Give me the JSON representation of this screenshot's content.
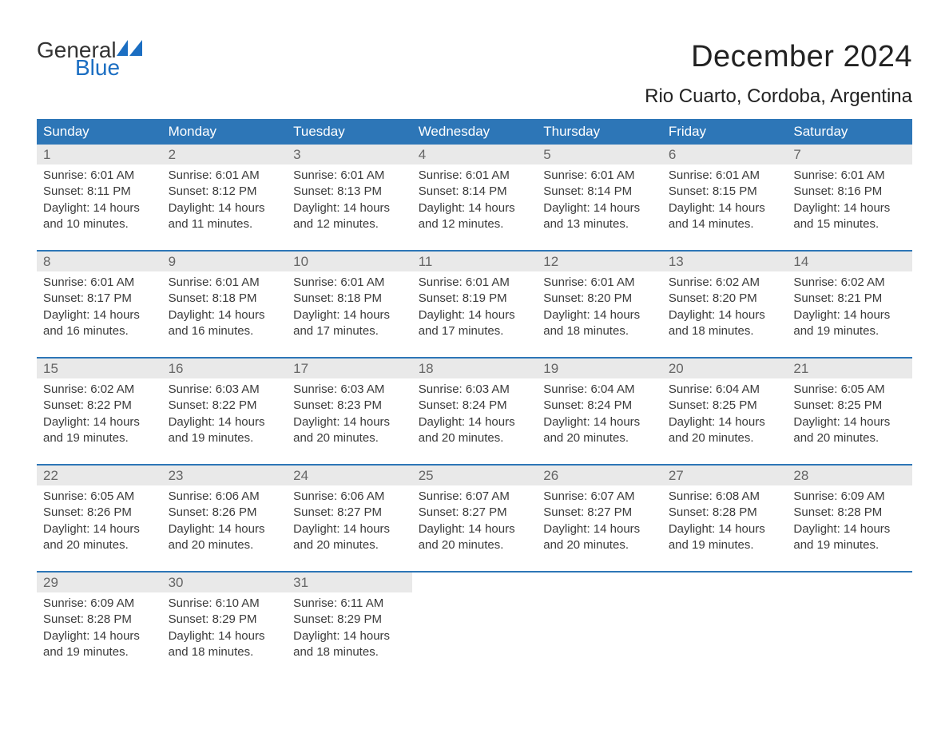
{
  "logo": {
    "word1": "General",
    "word2": "Blue",
    "flag_color": "#1b6ec2",
    "text_color_general": "#333333",
    "text_color_blue": "#1b6ec2"
  },
  "title": "December 2024",
  "location": "Rio Cuarto, Cordoba, Argentina",
  "colors": {
    "header_bg": "#2d76b7",
    "header_text": "#ffffff",
    "daynum_bg": "#e9e9e9",
    "daynum_text": "#666666",
    "body_text": "#3a3a3a",
    "week_divider": "#2d76b7",
    "page_bg": "#ffffff"
  },
  "typography": {
    "title_fontsize": 38,
    "location_fontsize": 24,
    "header_fontsize": 17,
    "daynum_fontsize": 17,
    "cell_fontsize": 15,
    "font_family": "Arial"
  },
  "day_headers": [
    "Sunday",
    "Monday",
    "Tuesday",
    "Wednesday",
    "Thursday",
    "Friday",
    "Saturday"
  ],
  "weeks": [
    [
      {
        "num": "1",
        "sunrise": "Sunrise: 6:01 AM",
        "sunset": "Sunset: 8:11 PM",
        "dl1": "Daylight: 14 hours",
        "dl2": "and 10 minutes."
      },
      {
        "num": "2",
        "sunrise": "Sunrise: 6:01 AM",
        "sunset": "Sunset: 8:12 PM",
        "dl1": "Daylight: 14 hours",
        "dl2": "and 11 minutes."
      },
      {
        "num": "3",
        "sunrise": "Sunrise: 6:01 AM",
        "sunset": "Sunset: 8:13 PM",
        "dl1": "Daylight: 14 hours",
        "dl2": "and 12 minutes."
      },
      {
        "num": "4",
        "sunrise": "Sunrise: 6:01 AM",
        "sunset": "Sunset: 8:14 PM",
        "dl1": "Daylight: 14 hours",
        "dl2": "and 12 minutes."
      },
      {
        "num": "5",
        "sunrise": "Sunrise: 6:01 AM",
        "sunset": "Sunset: 8:14 PM",
        "dl1": "Daylight: 14 hours",
        "dl2": "and 13 minutes."
      },
      {
        "num": "6",
        "sunrise": "Sunrise: 6:01 AM",
        "sunset": "Sunset: 8:15 PM",
        "dl1": "Daylight: 14 hours",
        "dl2": "and 14 minutes."
      },
      {
        "num": "7",
        "sunrise": "Sunrise: 6:01 AM",
        "sunset": "Sunset: 8:16 PM",
        "dl1": "Daylight: 14 hours",
        "dl2": "and 15 minutes."
      }
    ],
    [
      {
        "num": "8",
        "sunrise": "Sunrise: 6:01 AM",
        "sunset": "Sunset: 8:17 PM",
        "dl1": "Daylight: 14 hours",
        "dl2": "and 16 minutes."
      },
      {
        "num": "9",
        "sunrise": "Sunrise: 6:01 AM",
        "sunset": "Sunset: 8:18 PM",
        "dl1": "Daylight: 14 hours",
        "dl2": "and 16 minutes."
      },
      {
        "num": "10",
        "sunrise": "Sunrise: 6:01 AM",
        "sunset": "Sunset: 8:18 PM",
        "dl1": "Daylight: 14 hours",
        "dl2": "and 17 minutes."
      },
      {
        "num": "11",
        "sunrise": "Sunrise: 6:01 AM",
        "sunset": "Sunset: 8:19 PM",
        "dl1": "Daylight: 14 hours",
        "dl2": "and 17 minutes."
      },
      {
        "num": "12",
        "sunrise": "Sunrise: 6:01 AM",
        "sunset": "Sunset: 8:20 PM",
        "dl1": "Daylight: 14 hours",
        "dl2": "and 18 minutes."
      },
      {
        "num": "13",
        "sunrise": "Sunrise: 6:02 AM",
        "sunset": "Sunset: 8:20 PM",
        "dl1": "Daylight: 14 hours",
        "dl2": "and 18 minutes."
      },
      {
        "num": "14",
        "sunrise": "Sunrise: 6:02 AM",
        "sunset": "Sunset: 8:21 PM",
        "dl1": "Daylight: 14 hours",
        "dl2": "and 19 minutes."
      }
    ],
    [
      {
        "num": "15",
        "sunrise": "Sunrise: 6:02 AM",
        "sunset": "Sunset: 8:22 PM",
        "dl1": "Daylight: 14 hours",
        "dl2": "and 19 minutes."
      },
      {
        "num": "16",
        "sunrise": "Sunrise: 6:03 AM",
        "sunset": "Sunset: 8:22 PM",
        "dl1": "Daylight: 14 hours",
        "dl2": "and 19 minutes."
      },
      {
        "num": "17",
        "sunrise": "Sunrise: 6:03 AM",
        "sunset": "Sunset: 8:23 PM",
        "dl1": "Daylight: 14 hours",
        "dl2": "and 20 minutes."
      },
      {
        "num": "18",
        "sunrise": "Sunrise: 6:03 AM",
        "sunset": "Sunset: 8:24 PM",
        "dl1": "Daylight: 14 hours",
        "dl2": "and 20 minutes."
      },
      {
        "num": "19",
        "sunrise": "Sunrise: 6:04 AM",
        "sunset": "Sunset: 8:24 PM",
        "dl1": "Daylight: 14 hours",
        "dl2": "and 20 minutes."
      },
      {
        "num": "20",
        "sunrise": "Sunrise: 6:04 AM",
        "sunset": "Sunset: 8:25 PM",
        "dl1": "Daylight: 14 hours",
        "dl2": "and 20 minutes."
      },
      {
        "num": "21",
        "sunrise": "Sunrise: 6:05 AM",
        "sunset": "Sunset: 8:25 PM",
        "dl1": "Daylight: 14 hours",
        "dl2": "and 20 minutes."
      }
    ],
    [
      {
        "num": "22",
        "sunrise": "Sunrise: 6:05 AM",
        "sunset": "Sunset: 8:26 PM",
        "dl1": "Daylight: 14 hours",
        "dl2": "and 20 minutes."
      },
      {
        "num": "23",
        "sunrise": "Sunrise: 6:06 AM",
        "sunset": "Sunset: 8:26 PM",
        "dl1": "Daylight: 14 hours",
        "dl2": "and 20 minutes."
      },
      {
        "num": "24",
        "sunrise": "Sunrise: 6:06 AM",
        "sunset": "Sunset: 8:27 PM",
        "dl1": "Daylight: 14 hours",
        "dl2": "and 20 minutes."
      },
      {
        "num": "25",
        "sunrise": "Sunrise: 6:07 AM",
        "sunset": "Sunset: 8:27 PM",
        "dl1": "Daylight: 14 hours",
        "dl2": "and 20 minutes."
      },
      {
        "num": "26",
        "sunrise": "Sunrise: 6:07 AM",
        "sunset": "Sunset: 8:27 PM",
        "dl1": "Daylight: 14 hours",
        "dl2": "and 20 minutes."
      },
      {
        "num": "27",
        "sunrise": "Sunrise: 6:08 AM",
        "sunset": "Sunset: 8:28 PM",
        "dl1": "Daylight: 14 hours",
        "dl2": "and 19 minutes."
      },
      {
        "num": "28",
        "sunrise": "Sunrise: 6:09 AM",
        "sunset": "Sunset: 8:28 PM",
        "dl1": "Daylight: 14 hours",
        "dl2": "and 19 minutes."
      }
    ],
    [
      {
        "num": "29",
        "sunrise": "Sunrise: 6:09 AM",
        "sunset": "Sunset: 8:28 PM",
        "dl1": "Daylight: 14 hours",
        "dl2": "and 19 minutes."
      },
      {
        "num": "30",
        "sunrise": "Sunrise: 6:10 AM",
        "sunset": "Sunset: 8:29 PM",
        "dl1": "Daylight: 14 hours",
        "dl2": "and 18 minutes."
      },
      {
        "num": "31",
        "sunrise": "Sunrise: 6:11 AM",
        "sunset": "Sunset: 8:29 PM",
        "dl1": "Daylight: 14 hours",
        "dl2": "and 18 minutes."
      },
      null,
      null,
      null,
      null
    ]
  ]
}
